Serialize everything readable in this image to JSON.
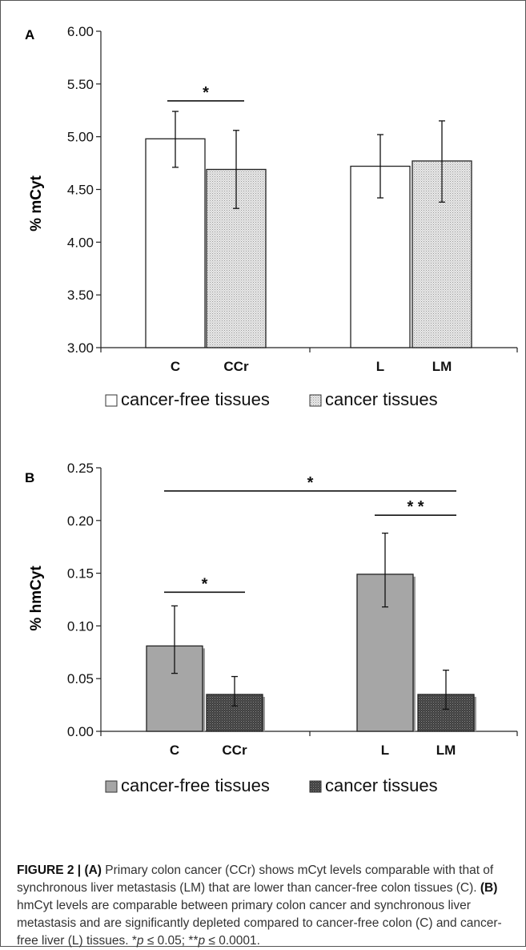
{
  "panel_a": {
    "label": "A",
    "legend": [
      {
        "name": "cancer-free tissues"
      },
      {
        "name": "cancer tissues"
      }
    ],
    "significance": [
      {
        "from": "C",
        "to": "CCr",
        "level": 5.34,
        "mark": "*"
      }
    ]
  },
  "panel_b": {
    "label": "B",
    "legend": [
      {
        "name": "cancer-free tissues"
      },
      {
        "name": "cancer tissues"
      }
    ],
    "significance": [
      {
        "from": "C",
        "to": "CCr",
        "level": 0.132,
        "mark": "*"
      },
      {
        "from": "L",
        "to": "LM",
        "level": 0.205,
        "mark": "* *"
      },
      {
        "from": "C",
        "to": "LM",
        "level": 0.228,
        "mark": "*"
      }
    ]
  },
  "chart_data": [
    {
      "type": "bar",
      "categories": [
        "C",
        "CCr",
        "L",
        "LM"
      ],
      "values": [
        4.98,
        4.69,
        4.72,
        4.77
      ],
      "error_low": [
        4.71,
        4.32,
        4.42,
        4.38
      ],
      "error_high": [
        5.24,
        5.06,
        5.02,
        5.15
      ],
      "groups": [
        "cancer-free",
        "cancer",
        "cancer-free",
        "cancer"
      ],
      "ylabel": "% mCyt",
      "ylim": [
        3.0,
        6.0
      ],
      "yticks": [
        "3.00",
        "3.50",
        "4.00",
        "4.50",
        "5.00",
        "5.50",
        "6.00"
      ],
      "colors": {
        "cancer-free": "#ffffff",
        "cancer": "#d9d9d9"
      },
      "legend_position": "bottom"
    },
    {
      "type": "bar",
      "categories": [
        "C",
        "CCr",
        "L",
        "LM"
      ],
      "values": [
        0.081,
        0.035,
        0.149,
        0.035
      ],
      "error_low": [
        0.055,
        0.024,
        0.118,
        0.021
      ],
      "error_high": [
        0.119,
        0.052,
        0.188,
        0.058
      ],
      "groups": [
        "cancer-free",
        "cancer",
        "cancer-free",
        "cancer"
      ],
      "ylabel": "% hmCyt",
      "ylim": [
        0.0,
        0.25
      ],
      "yticks": [
        "0.00",
        "0.05",
        "0.10",
        "0.15",
        "0.20",
        "0.25"
      ],
      "colors": {
        "cancer-free": "#a6a6a6",
        "cancer": "#404040"
      },
      "legend_position": "bottom"
    }
  ],
  "caption": {
    "fig_label": "FIGURE 2 | ",
    "a_label": "(A)",
    "a_text": " Primary colon cancer (CCr) shows mCyt levels comparable with that of synchronous liver metastasis (LM) that are lower than cancer-free colon tissues (C). ",
    "b_label": "(B)",
    "b_text": " hmCyt levels are comparable between primary colon cancer and synchronous liver metastasis and are significantly depleted compared to cancer-free colon (C) and cancer-free liver (L) tissues. *",
    "p1": "p",
    "t1": " ≤ 0.05; **",
    "p2": "p",
    "t2": " ≤ 0.0001."
  }
}
